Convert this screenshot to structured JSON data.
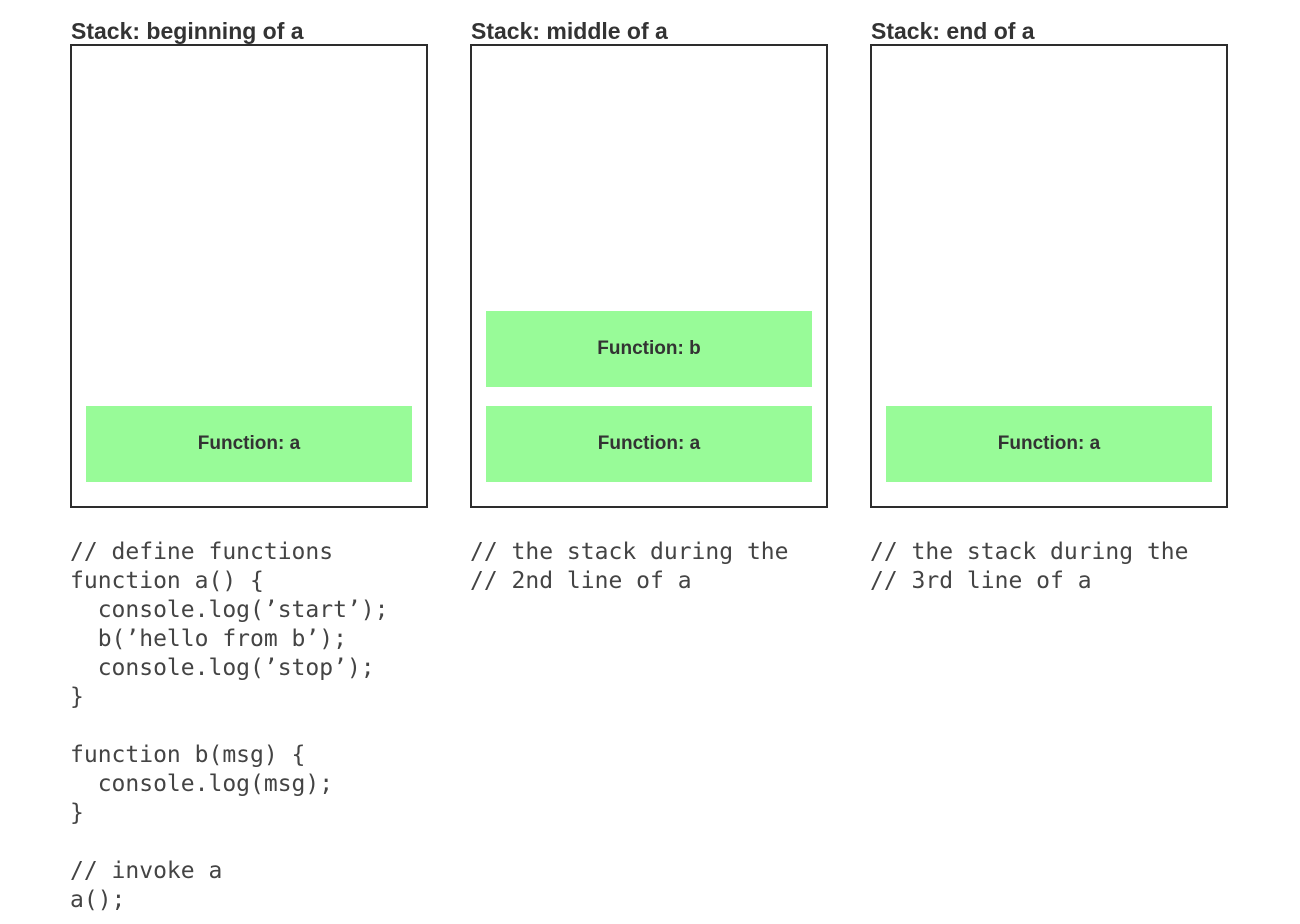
{
  "colors": {
    "frame_fill": "#98FB98",
    "box_border": "#2d2d2d",
    "title_text": "#333333",
    "frame_text": "#333333",
    "code_text": "#444444",
    "page_background": "#ffffff"
  },
  "columns": [
    {
      "title": "Stack: beginning of a",
      "frames": [
        {
          "label": "Function: a"
        }
      ],
      "code": [
        "// define functions",
        "function a() {",
        "  console.log(’start’);",
        "  b(’hello from b’);",
        "  console.log(’stop’);",
        "}",
        "",
        "function b(msg) {",
        "  console.log(msg);",
        "}",
        "",
        "// invoke a",
        "a();"
      ]
    },
    {
      "title": "Stack: middle of a",
      "frames": [
        {
          "label": "Function: b"
        },
        {
          "label": "Function: a"
        }
      ],
      "code": [
        "// the stack during the",
        "// 2nd line of a"
      ]
    },
    {
      "title": "Stack: end of a",
      "frames": [
        {
          "label": "Function: a"
        }
      ],
      "code": [
        "// the stack during the",
        "// 3rd line of a"
      ]
    }
  ]
}
